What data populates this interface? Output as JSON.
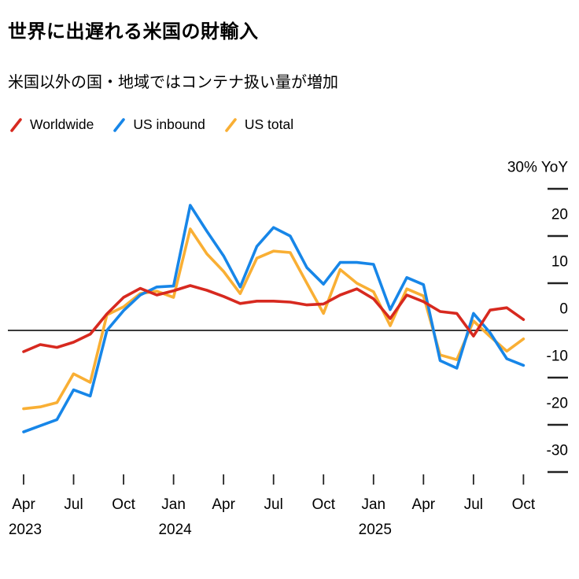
{
  "header": {
    "title": "世界に出遅れる米国の財輸入",
    "subtitle": "米国以外の国・地域ではコンテナ扱い量が増加"
  },
  "legend": {
    "items": [
      {
        "label": "Worldwide",
        "color": "#d7291f"
      },
      {
        "label": "US inbound",
        "color": "#1786e8"
      },
      {
        "label": "US total",
        "color": "#f9af34"
      }
    ]
  },
  "chart_data": {
    "type": "line",
    "title": "世界に出遅れる米国の財輸入",
    "subtitle": "米国以外の国・地域ではコンテナ扱い量が増加",
    "x": [
      "2023-04",
      "2023-05",
      "2023-06",
      "2023-07",
      "2023-08",
      "2023-09",
      "2023-10",
      "2023-11",
      "2023-12",
      "2024-01",
      "2024-02",
      "2024-03",
      "2024-04",
      "2024-05",
      "2024-06",
      "2024-07",
      "2024-08",
      "2024-09",
      "2024-10",
      "2024-11",
      "2024-12",
      "2025-01",
      "2025-02",
      "2025-03",
      "2025-04",
      "2025-05",
      "2025-06",
      "2025-07",
      "2025-08",
      "2025-09",
      "2025-10"
    ],
    "series": [
      {
        "name": "Worldwide",
        "color": "#d7291f",
        "values": [
          -4.5,
          -3.0,
          -3.6,
          -2.5,
          -0.8,
          3.5,
          7.0,
          8.9,
          7.5,
          8.4,
          9.5,
          8.5,
          7.2,
          5.7,
          6.2,
          6.2,
          6.0,
          5.4,
          5.6,
          7.5,
          8.8,
          6.7,
          2.5,
          7.5,
          6.1,
          4.0,
          3.6,
          -1.2,
          4.3,
          4.8,
          2.3
        ]
      },
      {
        "name": "US inbound",
        "color": "#1786e8",
        "values": [
          -21.5,
          -20.2,
          -18.9,
          -12.6,
          -13.9,
          0.0,
          4.2,
          7.5,
          9.2,
          9.4,
          26.5,
          21.0,
          15.8,
          9.2,
          17.8,
          21.8,
          20.0,
          13.3,
          9.8,
          14.4,
          14.4,
          14.0,
          4.4,
          11.2,
          9.7,
          -6.4,
          -8.0,
          3.6,
          -0.5,
          -6.0,
          -7.4
        ]
      },
      {
        "name": "US total",
        "color": "#f9af34",
        "values": [
          -16.6,
          -16.2,
          -15.3,
          -9.2,
          -11.0,
          3.3,
          5.0,
          7.8,
          8.3,
          7.0,
          21.5,
          16.2,
          12.5,
          7.8,
          15.3,
          16.8,
          16.5,
          10.0,
          3.6,
          12.9,
          10.0,
          8.2,
          1.0,
          8.8,
          7.3,
          -5.2,
          -6.2,
          2.0,
          -1.3,
          -4.4,
          -1.8
        ]
      }
    ],
    "y_axis": {
      "side": "right",
      "unit_label": "30% YoY",
      "ticks": [
        30,
        20,
        10,
        0,
        -10,
        -20,
        -30
      ],
      "range": [
        -33,
        32
      ],
      "zero_line": true
    },
    "x_axis": {
      "ticks": [
        {
          "label": "Apr",
          "index": 0
        },
        {
          "label": "Jul",
          "index": 3
        },
        {
          "label": "Oct",
          "index": 6
        },
        {
          "label": "Jan",
          "index": 9
        },
        {
          "label": "Apr",
          "index": 12
        },
        {
          "label": "Jul",
          "index": 15
        },
        {
          "label": "Oct",
          "index": 18
        },
        {
          "label": "Jan",
          "index": 21
        },
        {
          "label": "Apr",
          "index": 24
        },
        {
          "label": "Jul",
          "index": 27
        },
        {
          "label": "Oct",
          "index": 30
        }
      ],
      "year_labels": [
        {
          "label": "2023",
          "index": 0
        },
        {
          "label": "2024",
          "index": 9
        },
        {
          "label": "2025",
          "index": 21
        }
      ]
    },
    "grid": false,
    "legend_position": "top-left",
    "axis_color": "#3c3c3c",
    "tick_color": "#222222",
    "label_color": "#000000"
  }
}
